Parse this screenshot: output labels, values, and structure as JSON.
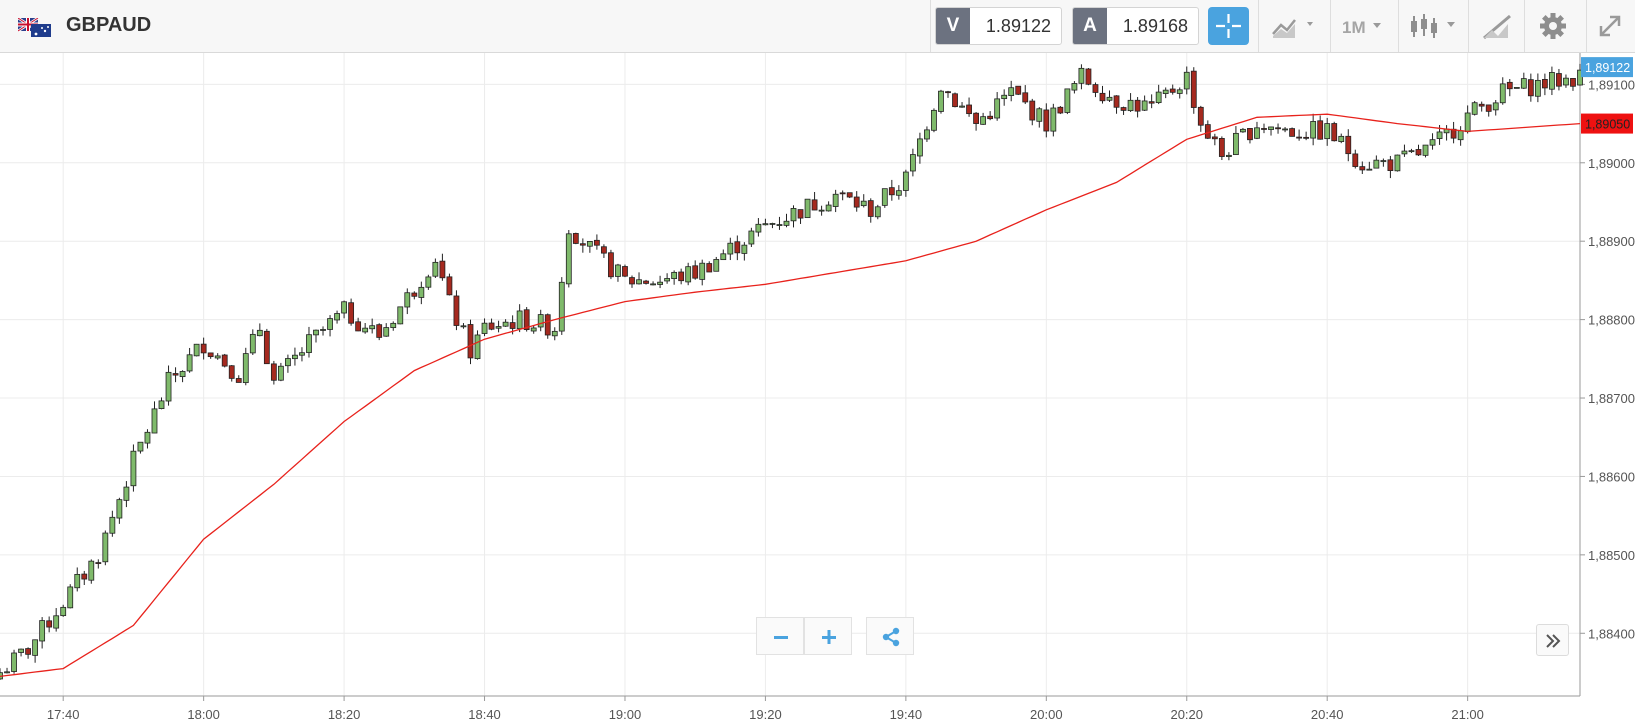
{
  "header": {
    "symbol": "GBPAUD",
    "flag_icon": "gb-au-flag-icon",
    "sell_label": "V",
    "sell_price": "1.89122",
    "buy_label": "A",
    "buy_price": "1.89168",
    "timeframe": "1M",
    "tools": [
      "crosshair-icon",
      "chart-type-icon",
      "timeframe-dropdown",
      "candlestick-icon",
      "draw-tool-icon",
      "gear-icon",
      "expand-icon"
    ]
  },
  "controls": {
    "zoom_out_icon": "minus-icon",
    "zoom_in_icon": "plus-icon",
    "share_icon": "share-icon",
    "scroll_icon": "double-chevron-right-icon"
  },
  "colors": {
    "up_candle": "#7fba6b",
    "down_candle": "#a5291f",
    "moving_average": "#e8221c",
    "last_price_tag": "#4aa3df",
    "ma_price_tag": "#ee1111",
    "accent": "#4aa3df"
  },
  "chart_data": {
    "type": "candlestick",
    "title": "GBPAUD",
    "interval": "1M",
    "ylim": [
      1.8832,
      1.8914
    ],
    "yticks": [
      "1,88400",
      "1,88500",
      "1,88600",
      "1,88700",
      "1,88800",
      "1,88900",
      "1,89000",
      "1,89100"
    ],
    "ytick_values": [
      1.884,
      1.885,
      1.886,
      1.887,
      1.888,
      1.889,
      1.89,
      1.891
    ],
    "x_minutes_start": "17:31",
    "x_minutes_end": "21:16",
    "xticks": [
      "17:40",
      "18:00",
      "18:20",
      "18:40",
      "19:00",
      "19:20",
      "19:40",
      "20:00",
      "20:20",
      "20:40",
      "21:00"
    ],
    "xtick_minutes": [
      "17:40",
      "18:00",
      "18:20",
      "18:40",
      "19:00",
      "19:20",
      "19:40",
      "20:00",
      "20:20",
      "20:40",
      "21:00"
    ],
    "last_price_label": "1,89122",
    "ma_label": "1,89050",
    "grid": true,
    "series": [
      {
        "name": "",
        "kind": "candles",
        "anchors_time": [
          "17:31",
          "17:35",
          "17:40",
          "17:45",
          "17:50",
          "17:55",
          "18:00",
          "18:05",
          "18:08",
          "18:10",
          "18:15",
          "18:20",
          "18:25",
          "18:30",
          "18:33",
          "18:35",
          "18:38",
          "18:40",
          "18:45",
          "18:50",
          "18:52",
          "18:55",
          "19:00",
          "19:05",
          "19:10",
          "19:15",
          "19:20",
          "19:25",
          "19:30",
          "19:35",
          "19:40",
          "19:45",
          "19:50",
          "19:55",
          "20:00",
          "20:05",
          "20:10",
          "20:15",
          "20:20",
          "20:22",
          "20:25",
          "20:30",
          "20:35",
          "20:40",
          "20:45",
          "20:50",
          "20:55",
          "21:00",
          "21:05",
          "21:10",
          "21:16"
        ],
        "anchors_close": [
          1.8835,
          1.8838,
          1.8844,
          1.885,
          1.8862,
          1.8872,
          1.8877,
          1.8873,
          1.8879,
          1.8872,
          1.8877,
          1.8881,
          1.8878,
          1.8884,
          1.8888,
          1.8882,
          1.8876,
          1.8879,
          1.888,
          1.8879,
          1.8892,
          1.8889,
          1.8885,
          1.8885,
          1.8886,
          1.8889,
          1.8892,
          1.8894,
          1.8896,
          1.8894,
          1.8898,
          1.891,
          1.8905,
          1.8909,
          1.8905,
          1.8911,
          1.8908,
          1.8907,
          1.8911,
          1.8905,
          1.8901,
          1.8905,
          1.8904,
          1.8904,
          1.89,
          1.89,
          1.8902,
          1.8906,
          1.8909,
          1.891,
          1.8911
        ]
      },
      {
        "name": "",
        "kind": "moving-average",
        "anchors_time": [
          "17:31",
          "17:40",
          "17:50",
          "18:00",
          "18:10",
          "18:20",
          "18:30",
          "18:40",
          "18:50",
          "19:00",
          "19:10",
          "19:20",
          "19:30",
          "19:40",
          "19:50",
          "20:00",
          "20:10",
          "20:20",
          "20:30",
          "20:40",
          "20:50",
          "21:00",
          "21:16"
        ],
        "anchors_value": [
          1.88345,
          1.88355,
          1.8841,
          1.8852,
          1.8859,
          1.8867,
          1.88735,
          1.88775,
          1.888,
          1.88823,
          1.88835,
          1.88845,
          1.8886,
          1.88875,
          1.889,
          1.8894,
          1.88975,
          1.8903,
          1.89058,
          1.89062,
          1.8905,
          1.8904,
          1.8905
        ]
      }
    ]
  }
}
